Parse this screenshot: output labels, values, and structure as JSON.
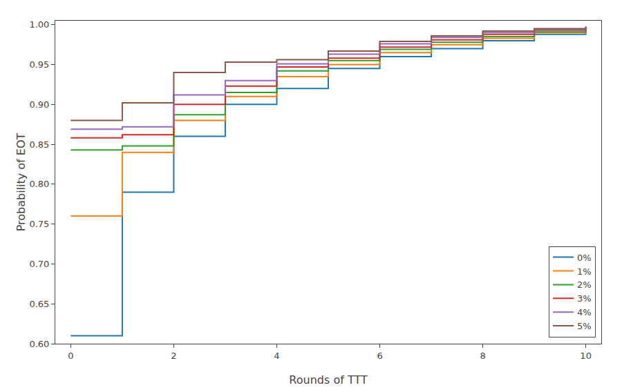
{
  "chart_data": {
    "type": "step",
    "xlabel": "Rounds of TTT",
    "ylabel": "Probability of EOT",
    "x": [
      0,
      1,
      2,
      3,
      4,
      5,
      6,
      7,
      8,
      9,
      10
    ],
    "series": [
      {
        "name": "0%",
        "color": "#1f77b4",
        "values": [
          0.61,
          0.79,
          0.86,
          0.9,
          0.92,
          0.945,
          0.96,
          0.97,
          0.98,
          0.988,
          0.993
        ]
      },
      {
        "name": "1%",
        "color": "#ff7f0e",
        "values": [
          0.76,
          0.84,
          0.88,
          0.91,
          0.935,
          0.95,
          0.965,
          0.975,
          0.983,
          0.99,
          0.994
        ]
      },
      {
        "name": "2%",
        "color": "#2ca02c",
        "values": [
          0.843,
          0.848,
          0.887,
          0.915,
          0.942,
          0.955,
          0.969,
          0.978,
          0.985,
          0.991,
          0.995
        ]
      },
      {
        "name": "3%",
        "color": "#d62728",
        "values": [
          0.858,
          0.862,
          0.9,
          0.923,
          0.947,
          0.958,
          0.972,
          0.981,
          0.988,
          0.993,
          0.996
        ]
      },
      {
        "name": "4%",
        "color": "#9467bd",
        "values": [
          0.869,
          0.872,
          0.912,
          0.93,
          0.951,
          0.963,
          0.976,
          0.984,
          0.99,
          0.994,
          0.997
        ]
      },
      {
        "name": "5%",
        "color": "#8c564b",
        "values": [
          0.88,
          0.902,
          0.94,
          0.953,
          0.956,
          0.967,
          0.979,
          0.986,
          0.992,
          0.995,
          0.998
        ]
      }
    ],
    "xlim": [
      -0.3,
      10.3
    ],
    "ylim": [
      0.6,
      1.005
    ],
    "xticks": [
      0,
      2,
      4,
      6,
      8,
      10
    ],
    "yticks": [
      {
        "value": 0.6,
        "label": "0.60"
      },
      0.65,
      {
        "value": 0.7,
        "label": "0.70"
      },
      0.75,
      {
        "value": 0.8,
        "label": "0.80"
      },
      0.85,
      {
        "value": 0.9,
        "label": "0.90"
      },
      0.95,
      {
        "value": 1.0,
        "label": "1.00"
      }
    ],
    "grid": false,
    "legend": "lower right"
  }
}
